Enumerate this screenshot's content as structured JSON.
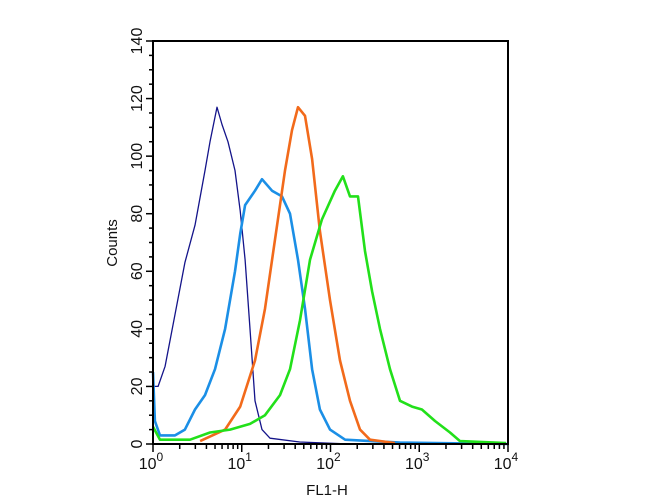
{
  "chart_data": {
    "type": "line",
    "title": "",
    "xlabel": "FL1-H",
    "ylabel": "Counts",
    "xscale": "log",
    "xlim": [
      1,
      10000
    ],
    "ylim": [
      0,
      140
    ],
    "x_tick_labels": [
      {
        "base": "10",
        "exp": "0",
        "value": 1
      },
      {
        "base": "10",
        "exp": "1",
        "value": 10
      },
      {
        "base": "10",
        "exp": "2",
        "value": 100
      },
      {
        "base": "10",
        "exp": "3",
        "value": 1000
      },
      {
        "base": "10",
        "exp": "4",
        "value": 10000
      }
    ],
    "y_ticks": [
      0,
      20,
      40,
      60,
      80,
      100,
      120,
      140
    ],
    "grid": false,
    "legend": "none",
    "series": [
      {
        "name": "navy",
        "color": "#14148a",
        "width": 1.3,
        "x": [
          1,
          1,
          1.14,
          1.37,
          1.77,
          2.29,
          2.97,
          3.85,
          4.39,
          5.26,
          5.99,
          7.0,
          8.4,
          9.6,
          10.9,
          12.4,
          14.1,
          16.9,
          20.8,
          45,
          166,
          10000
        ],
        "y": [
          80,
          20,
          20,
          27,
          45,
          63,
          76,
          95,
          105,
          117,
          111,
          105,
          95,
          81,
          64,
          40,
          15,
          5,
          2,
          0.7,
          0,
          0
        ]
      },
      {
        "name": "blue",
        "color": "#1b8fe6",
        "width": 2.6,
        "x": [
          1,
          1.05,
          1.2,
          1.77,
          2.29,
          2.97,
          3.85,
          5.0,
          6.5,
          8.4,
          9.6,
          10.9,
          14.1,
          16.9,
          21.9,
          28.4,
          35,
          43,
          51.6,
          62,
          76,
          98.7,
          146,
          605,
          10000
        ],
        "y": [
          25,
          8,
          3,
          3,
          5,
          12,
          17,
          26,
          40,
          60,
          73,
          83,
          88,
          92,
          88,
          86,
          80,
          64,
          47,
          26,
          12,
          5,
          1.5,
          0.5,
          0
        ]
      },
      {
        "name": "orange",
        "color": "#f26a1b",
        "width": 2.6,
        "x": [
          3.39,
          6.5,
          9.6,
          14.1,
          18.3,
          23.7,
          30.7,
          36.8,
          43,
          51.6,
          62,
          76,
          98.7,
          128,
          166,
          215,
          279,
          533
        ],
        "y": [
          1,
          5,
          13,
          29,
          47,
          71,
          95,
          109,
          117,
          114,
          99,
          74,
          50,
          29,
          15,
          5,
          1.5,
          0.3
        ]
      },
      {
        "name": "green",
        "color": "#22e01a",
        "width": 2.6,
        "x": [
          1,
          1.2,
          2.61,
          4.39,
          7.4,
          12.4,
          18.3,
          27,
          35,
          45.3,
          58.7,
          80,
          112,
          138,
          166,
          204,
          245,
          294,
          361,
          468,
          607,
          829,
          1072,
          1505,
          2220,
          2878,
          9500
        ],
        "y": [
          6,
          1.5,
          1.5,
          4,
          5,
          7,
          10,
          17,
          26,
          43,
          64,
          78,
          88,
          93,
          86,
          86,
          67,
          53,
          40,
          26,
          15,
          13,
          12,
          8,
          4,
          1,
          0.3
        ]
      }
    ]
  }
}
